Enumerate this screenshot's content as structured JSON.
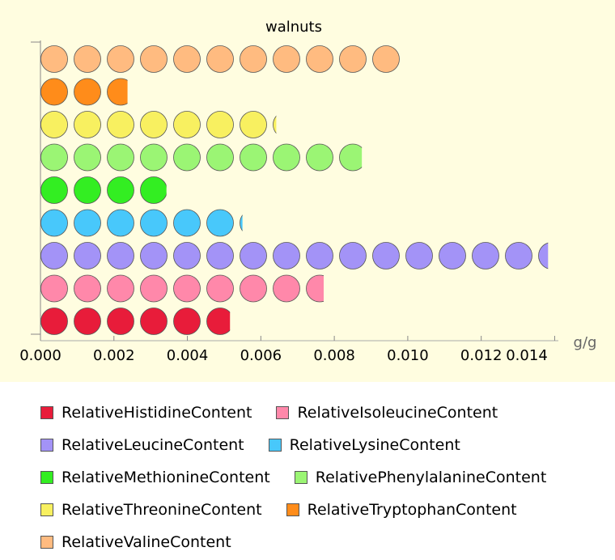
{
  "chart_data": {
    "type": "pictogram-bar",
    "title": "walnuts",
    "x_label": "g/g",
    "xlim": [
      0,
      0.0141
    ],
    "xticks": [
      {
        "value": 0,
        "label": "0.000"
      },
      0.002,
      0.004,
      0.006,
      0.008,
      {
        "value": 0.01,
        "label": "0.010"
      },
      0.012,
      0.014
    ],
    "series": [
      {
        "name": "RelativeHistidineContent",
        "color": "#e81c3a",
        "values": [
          0.00516
        ]
      },
      {
        "name": "RelativeIsoleucineContent",
        "color": "#ff88aa",
        "values": [
          0.00771
        ]
      },
      {
        "name": "RelativeLeucineContent",
        "color": "#a393f7",
        "values": [
          0.01382
        ]
      },
      {
        "name": "RelativeLysineContent",
        "color": "#48c8fb",
        "values": [
          0.0055
        ]
      },
      {
        "name": "RelativeMethionineContent",
        "color": "#33ee22",
        "values": [
          0.00343
        ]
      },
      {
        "name": "RelativePhenylalanineContent",
        "color": "#9bf574",
        "values": [
          0.00875
        ]
      },
      {
        "name": "RelativeThreonineContent",
        "color": "#f8f060",
        "values": [
          0.00642
        ]
      },
      {
        "name": "RelativeTryptophanContent",
        "color": "#ff8c1a",
        "values": [
          0.00237
        ]
      },
      {
        "name": "RelativeValineContent",
        "color": "#ffbb80",
        "values": [
          0.00982
        ]
      }
    ]
  }
}
